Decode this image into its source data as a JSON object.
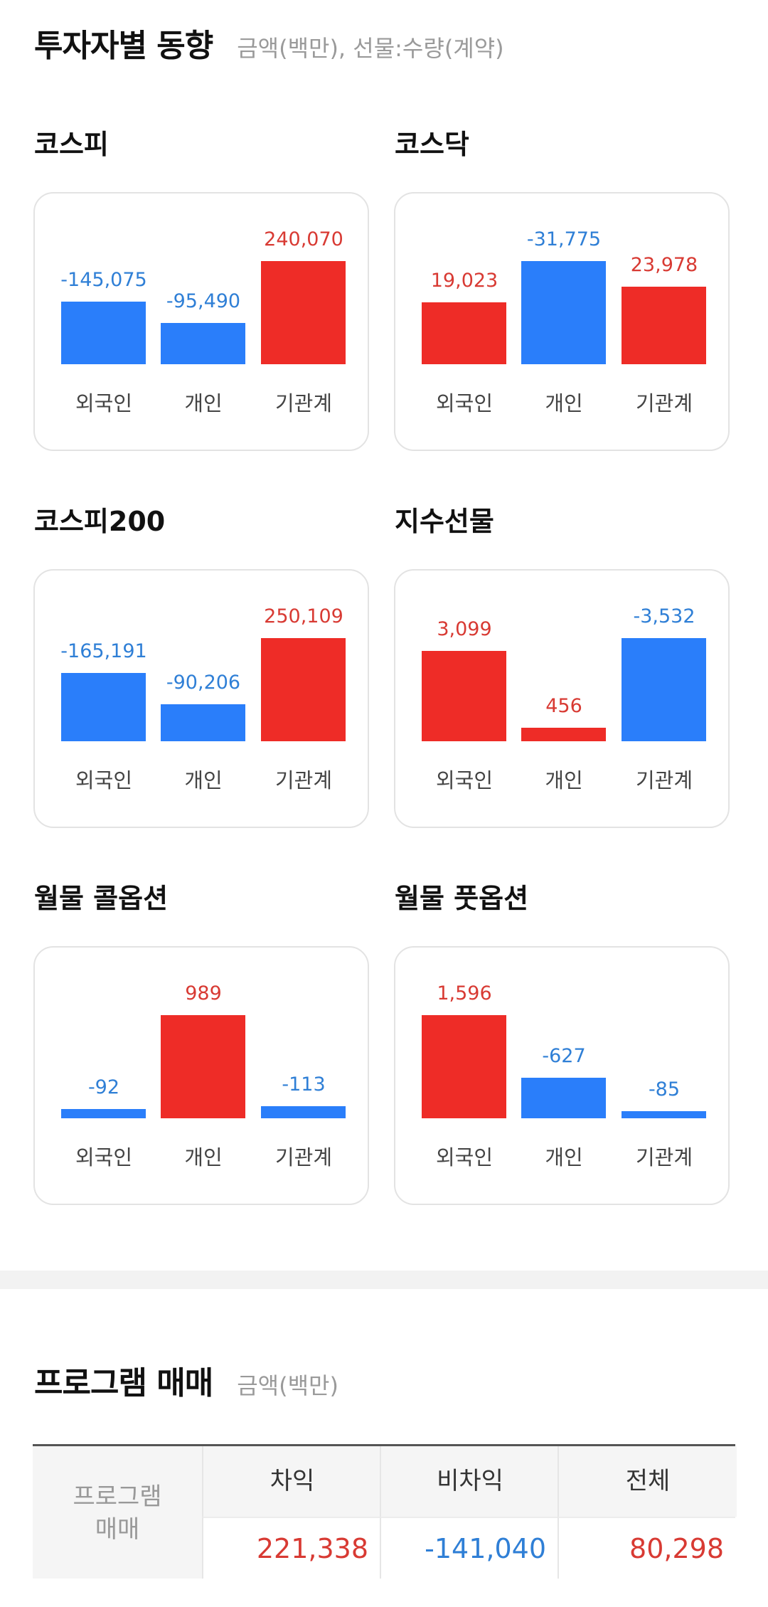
{
  "investor_trend": {
    "title": "투자자별 동향",
    "subtitle": "금액(백만), 선물:수량(계약)",
    "markets": [
      {
        "name": "코스피",
        "values": [
          {
            "label": "외국인",
            "value": "-145,075"
          },
          {
            "label": "개인",
            "value": "-95,490"
          },
          {
            "label": "기관계",
            "value": "240,070"
          }
        ]
      },
      {
        "name": "코스닥",
        "values": [
          {
            "label": "외국인",
            "value": "19,023"
          },
          {
            "label": "개인",
            "value": "-31,775"
          },
          {
            "label": "기관계",
            "value": "23,978"
          }
        ]
      },
      {
        "name": "코스피200",
        "values": [
          {
            "label": "외국인",
            "value": "-165,191"
          },
          {
            "label": "개인",
            "value": "-90,206"
          },
          {
            "label": "기관계",
            "value": "250,109"
          }
        ]
      },
      {
        "name": "지수선물",
        "values": [
          {
            "label": "외국인",
            "value": "3,099"
          },
          {
            "label": "개인",
            "value": "456"
          },
          {
            "label": "기관계",
            "value": "-3,532"
          }
        ]
      },
      {
        "name": "월물 콜옵션",
        "values": [
          {
            "label": "외국인",
            "value": "-92"
          },
          {
            "label": "개인",
            "value": "989"
          },
          {
            "label": "기관계",
            "value": "-113"
          }
        ]
      },
      {
        "name": "월물 풋옵션",
        "values": [
          {
            "label": "외국인",
            "value": "1,596"
          },
          {
            "label": "개인",
            "value": "-627"
          },
          {
            "label": "기관계",
            "value": "-85"
          }
        ]
      }
    ]
  },
  "program_trading": {
    "title": "프로그램 매매",
    "subtitle": "금액(백만)",
    "row_header": "프로그램\n매매",
    "columns": [
      "차익",
      "비차익",
      "전체"
    ],
    "values": [
      "221,338",
      "-141,040",
      "80,298"
    ]
  },
  "colors": {
    "positive": "#ee2c27",
    "negative": "#2a7efa"
  }
}
